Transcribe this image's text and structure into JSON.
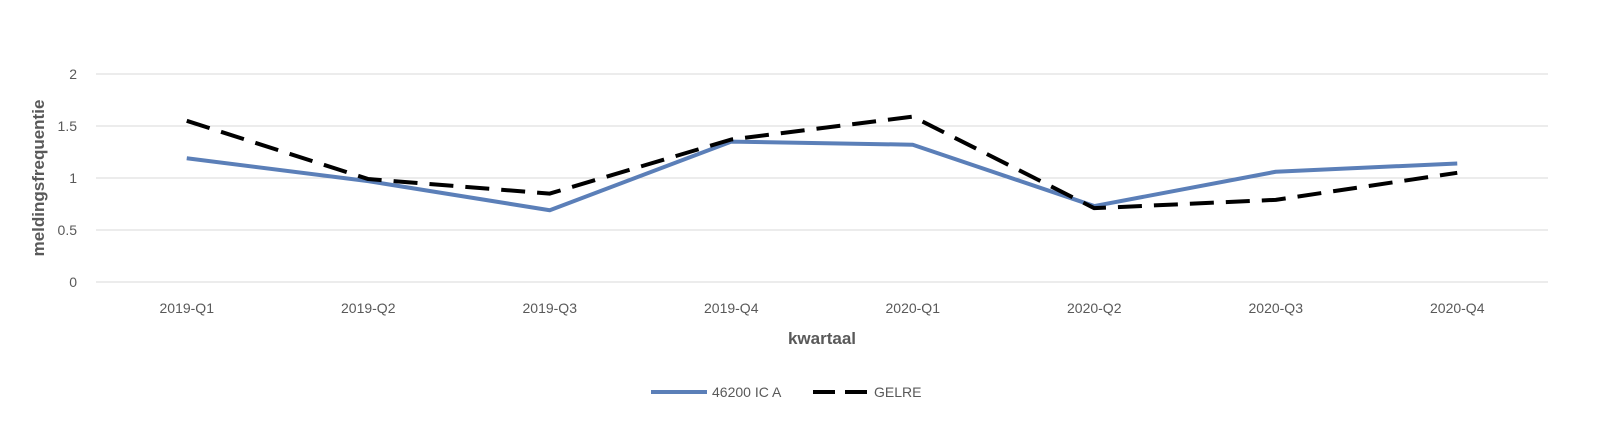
{
  "chart_data": {
    "type": "line",
    "xlabel": "kwartaal",
    "ylabel": "meldingsfrequentie",
    "categories": [
      "2019-Q1",
      "2019-Q2",
      "2019-Q3",
      "2019-Q4",
      "2020-Q1",
      "2020-Q2",
      "2020-Q3",
      "2020-Q4"
    ],
    "ylim": [
      0,
      2
    ],
    "yticks": [
      "0",
      "0.5",
      "1",
      "1.5",
      "2"
    ],
    "grid": true,
    "legend_position": "bottom",
    "series": [
      {
        "name": "46200 IC A",
        "color": "#5B7FB8",
        "style": "solid",
        "values": [
          1.19,
          0.97,
          0.69,
          1.35,
          1.32,
          0.73,
          1.06,
          1.14
        ]
      },
      {
        "name": "GELRE",
        "color": "#000000",
        "style": "dashed",
        "values": [
          1.55,
          0.99,
          0.85,
          1.37,
          1.59,
          0.71,
          0.79,
          1.05
        ]
      }
    ]
  }
}
